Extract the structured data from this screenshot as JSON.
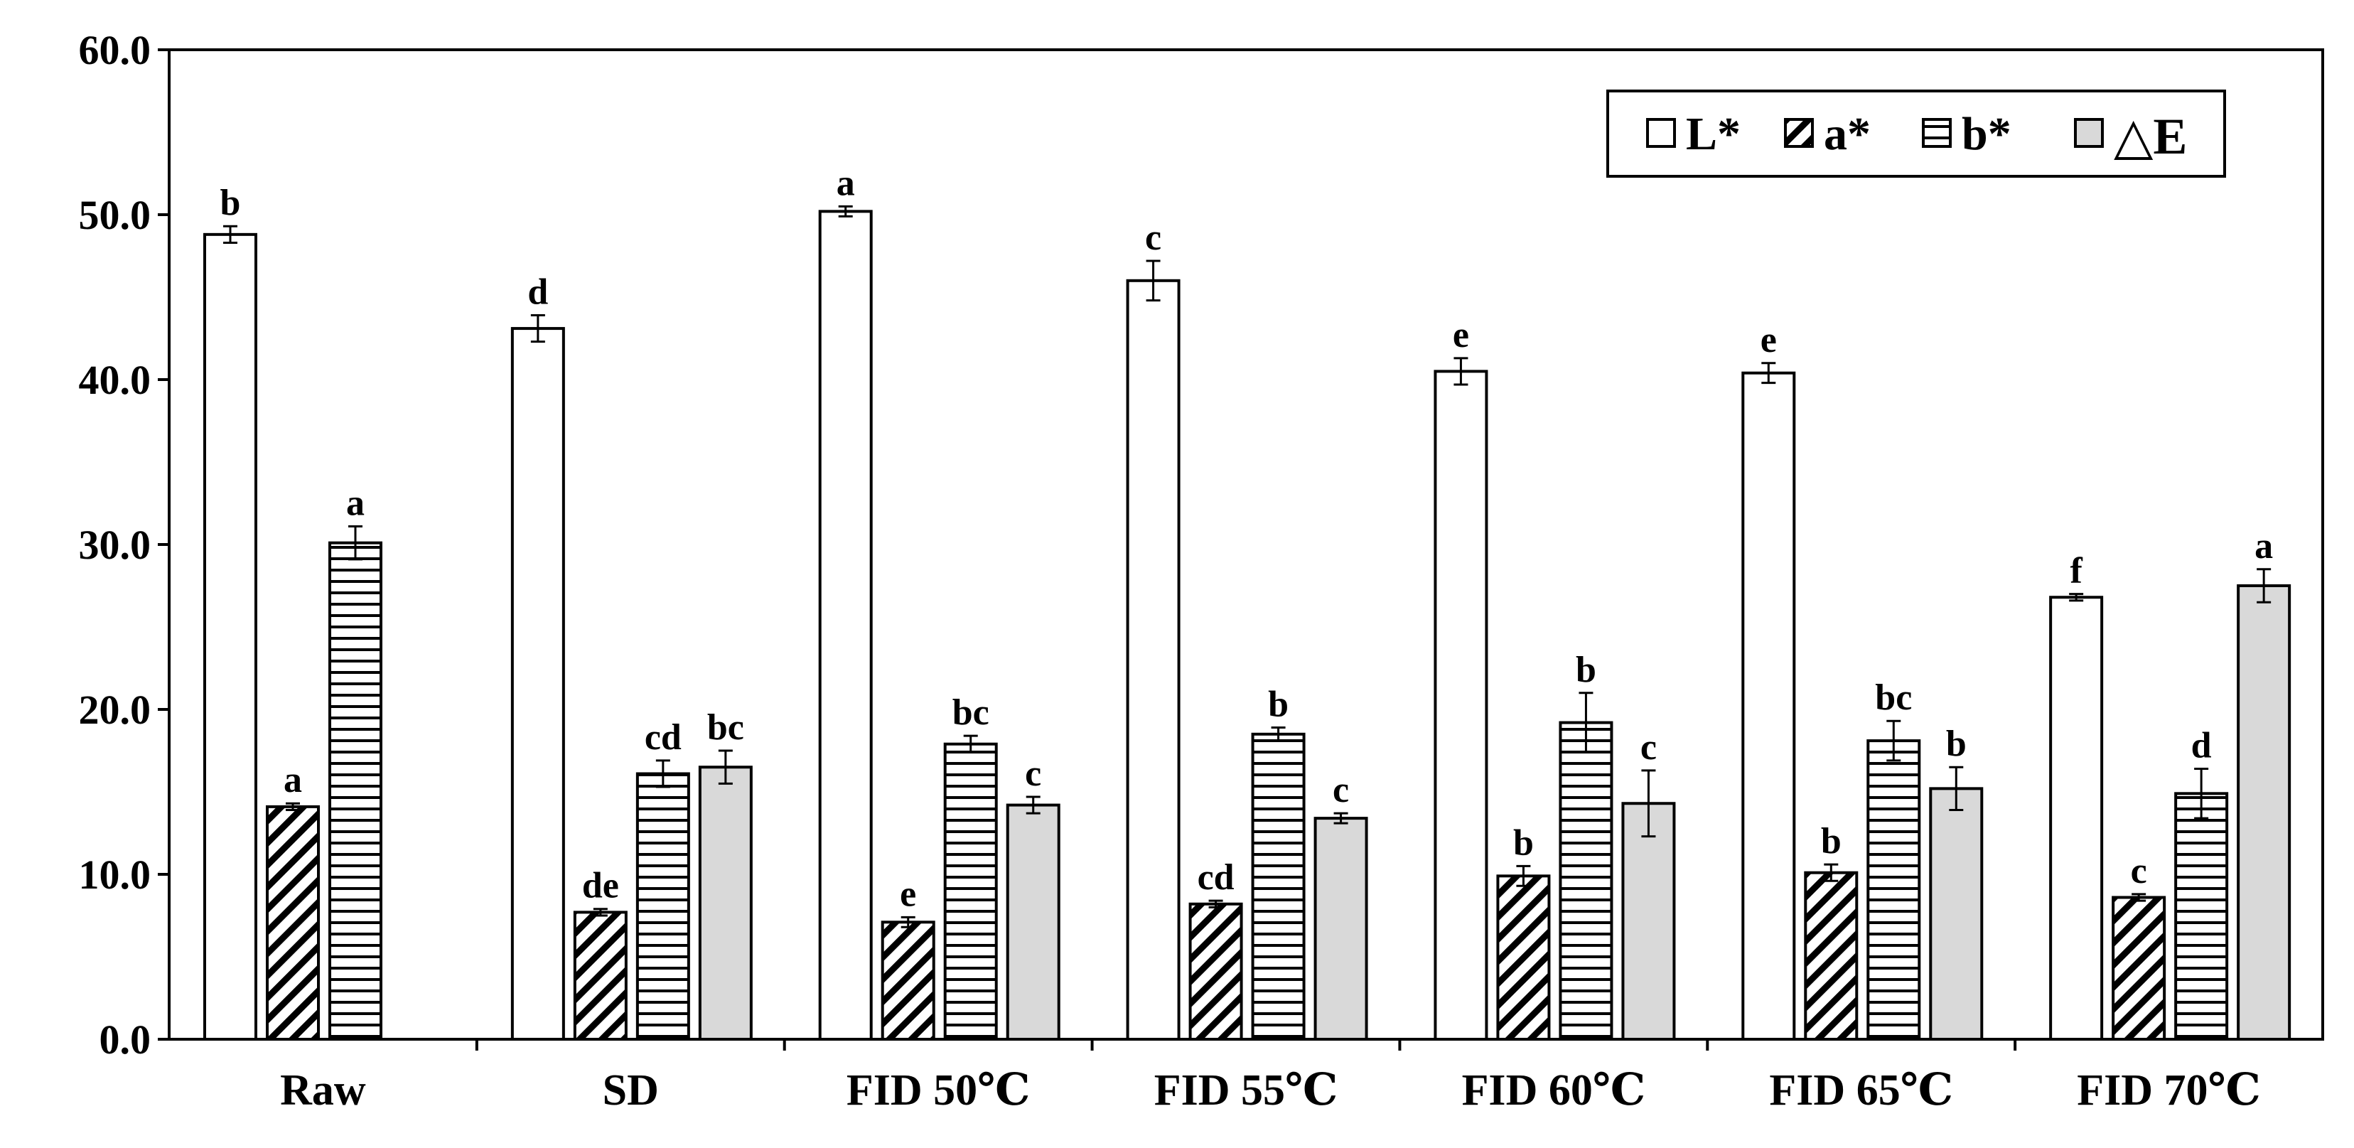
{
  "chart_data": {
    "type": "bar",
    "title": "",
    "xlabel": "",
    "ylabel": "",
    "ylim": [
      0,
      60
    ],
    "yticks": [
      "0.0",
      "10.0",
      "20.0",
      "30.0",
      "40.0",
      "50.0",
      "60.0"
    ],
    "grid": false,
    "legend_position": "top-right",
    "categories": [
      "Raw",
      "SD",
      "FID 50℃",
      "FID 55℃",
      "FID 60℃",
      "FID 65℃",
      "FID 70℃"
    ],
    "series": [
      {
        "name": "L*",
        "pattern": "white",
        "values": [
          48.8,
          43.1,
          50.2,
          46.0,
          40.5,
          40.4,
          26.8
        ],
        "errors": [
          0.5,
          0.8,
          0.3,
          1.2,
          0.8,
          0.6,
          0.2
        ],
        "letters": [
          "b",
          "d",
          "a",
          "c",
          "e",
          "e",
          "f"
        ]
      },
      {
        "name": "a*",
        "pattern": "diagonal",
        "values": [
          14.1,
          7.7,
          7.1,
          8.2,
          9.9,
          10.1,
          8.6
        ],
        "errors": [
          0.2,
          0.2,
          0.3,
          0.2,
          0.6,
          0.5,
          0.2
        ],
        "present": [
          true,
          true,
          true,
          true,
          true,
          true,
          true
        ],
        "letters": [
          "a",
          "de",
          "e",
          "cd",
          "b",
          "b",
          "c"
        ]
      },
      {
        "name": "b*",
        "pattern": "horizontal",
        "values": [
          30.1,
          16.1,
          17.9,
          18.5,
          19.2,
          18.1,
          14.9
        ],
        "errors": [
          1.0,
          0.8,
          0.5,
          0.4,
          1.8,
          1.2,
          1.5
        ],
        "letters": [
          "a",
          "cd",
          "bc",
          "b",
          "b",
          "bc",
          "d"
        ]
      },
      {
        "name": "△E",
        "pattern": "gray",
        "values": [
          null,
          16.5,
          14.2,
          13.4,
          14.3,
          15.2,
          27.5
        ],
        "errors": [
          null,
          1.0,
          0.5,
          0.3,
          2.0,
          1.3,
          1.0
        ],
        "letters": [
          null,
          "bc",
          "c",
          "c",
          "c",
          "b",
          "a"
        ]
      }
    ]
  },
  "colors": {
    "bar_stroke": "#000000",
    "gray_fill": "#d9d9d9",
    "white_fill": "#ffffff"
  }
}
